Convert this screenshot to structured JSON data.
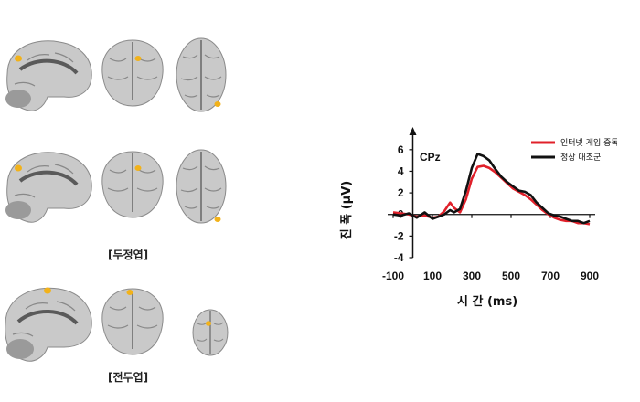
{
  "captions": {
    "parietal": "[두정엽]",
    "frontal": "[전두엽]"
  },
  "colors": {
    "brain_fill": "#c9c9c9",
    "brain_dark": "#6e6e6e",
    "activation": "#f2b21a",
    "series_internet": "#e0202a",
    "series_control": "#111111"
  },
  "chart_data": {
    "type": "line",
    "channel_label": "CPz",
    "xlabel": "시 간  (ms)",
    "ylabel": "진 폭  (μV)",
    "xlim": [
      -100,
      900
    ],
    "ylim": [
      -4,
      7
    ],
    "xticks": [
      -100,
      100,
      300,
      500,
      700,
      900
    ],
    "yticks": [
      -4,
      -2,
      0,
      2,
      4,
      6
    ],
    "legend_placement": "top-right",
    "series": [
      {
        "name": "인터넷 게임 중독군",
        "color": "#e0202a",
        "x": [
          -100,
          -60,
          -20,
          20,
          60,
          100,
          130,
          160,
          190,
          210,
          240,
          270,
          300,
          330,
          360,
          390,
          420,
          450,
          480,
          510,
          540,
          570,
          600,
          630,
          660,
          690,
          720,
          750,
          780,
          810,
          840,
          870,
          900
        ],
        "y": [
          0.2,
          0.1,
          0.0,
          -0.2,
          -0.1,
          -0.3,
          -0.2,
          0.3,
          1.1,
          0.6,
          0.2,
          1.4,
          3.3,
          4.4,
          4.5,
          4.3,
          3.9,
          3.4,
          2.9,
          2.4,
          2.1,
          1.8,
          1.4,
          0.9,
          0.4,
          0.0,
          -0.3,
          -0.5,
          -0.6,
          -0.6,
          -0.8,
          -0.8,
          -0.9
        ]
      },
      {
        "name": "정상 대조군",
        "color": "#111111",
        "x": [
          -100,
          -60,
          -20,
          20,
          60,
          100,
          130,
          160,
          190,
          210,
          240,
          270,
          300,
          330,
          360,
          390,
          420,
          450,
          480,
          510,
          540,
          570,
          600,
          630,
          660,
          690,
          720,
          750,
          780,
          810,
          840,
          870,
          900
        ],
        "y": [
          0.0,
          -0.1,
          0.1,
          -0.3,
          0.2,
          -0.4,
          -0.2,
          0.0,
          0.4,
          0.2,
          0.5,
          2.2,
          4.3,
          5.6,
          5.4,
          5.0,
          4.2,
          3.5,
          3.0,
          2.6,
          2.2,
          2.1,
          1.8,
          1.1,
          0.6,
          0.1,
          -0.1,
          -0.2,
          -0.4,
          -0.6,
          -0.6,
          -0.8,
          -0.6
        ]
      }
    ]
  }
}
